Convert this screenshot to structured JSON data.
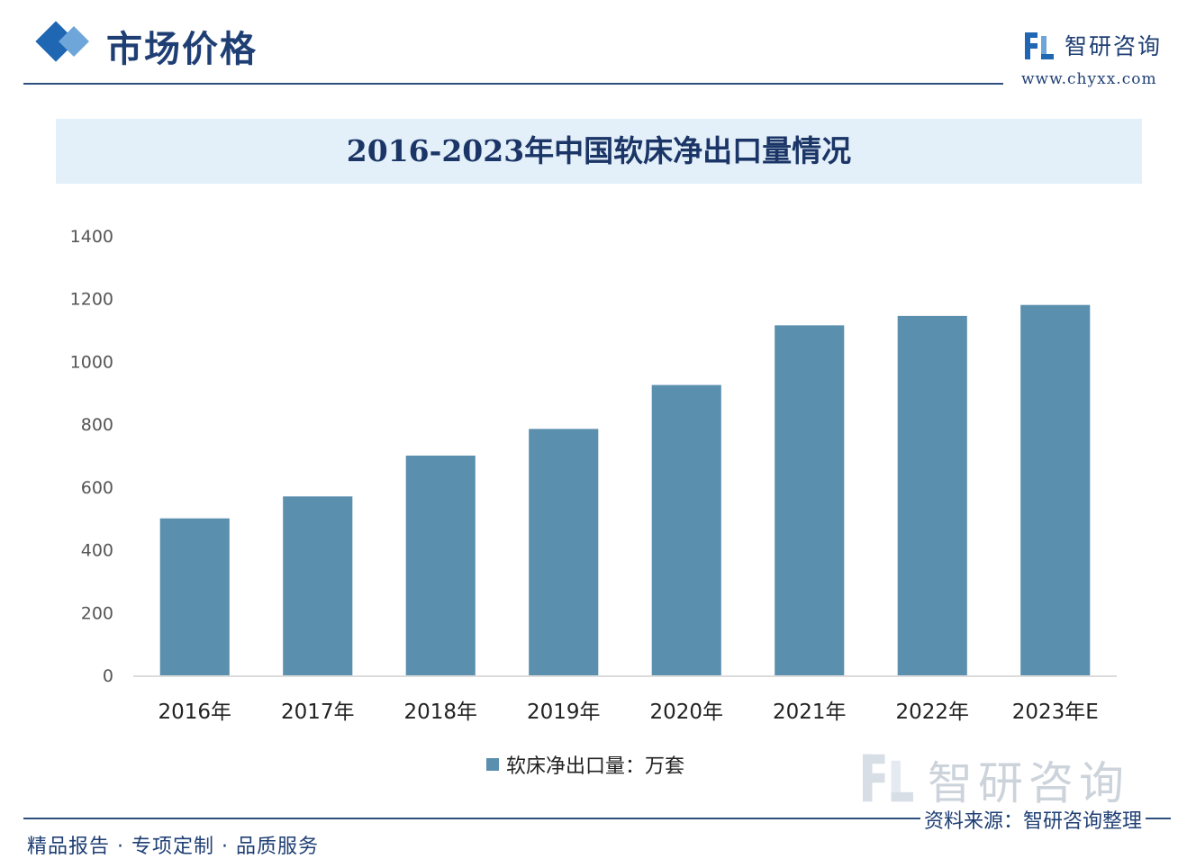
{
  "header": {
    "section_title": "市场价格",
    "logo_name": "智研咨询",
    "logo_url": "www.chyxx.com",
    "logo_icon": "chyxx-logo-icon"
  },
  "chart_data": {
    "type": "bar",
    "title": "2016-2023年中国软床净出口量情况",
    "categories": [
      "2016年",
      "2017年",
      "2018年",
      "2019年",
      "2020年",
      "2021年",
      "2022年",
      "2023年E"
    ],
    "series": [
      {
        "name": "软床净出口量：万套",
        "values": [
          500,
          570,
          700,
          785,
          925,
          1115,
          1145,
          1180
        ]
      }
    ],
    "ylim": [
      0,
      1400
    ],
    "yticks": [
      "0",
      "200",
      "400",
      "600",
      "800",
      "1000",
      "1200",
      "1400"
    ],
    "legend": "bottom",
    "grid": false,
    "bar_color": "#5b8fae"
  },
  "watermark": {
    "text": "智研咨询"
  },
  "footer": {
    "left": "精品报告 · 专项定制 · 品质服务",
    "source": "资料来源：智研咨询整理"
  }
}
